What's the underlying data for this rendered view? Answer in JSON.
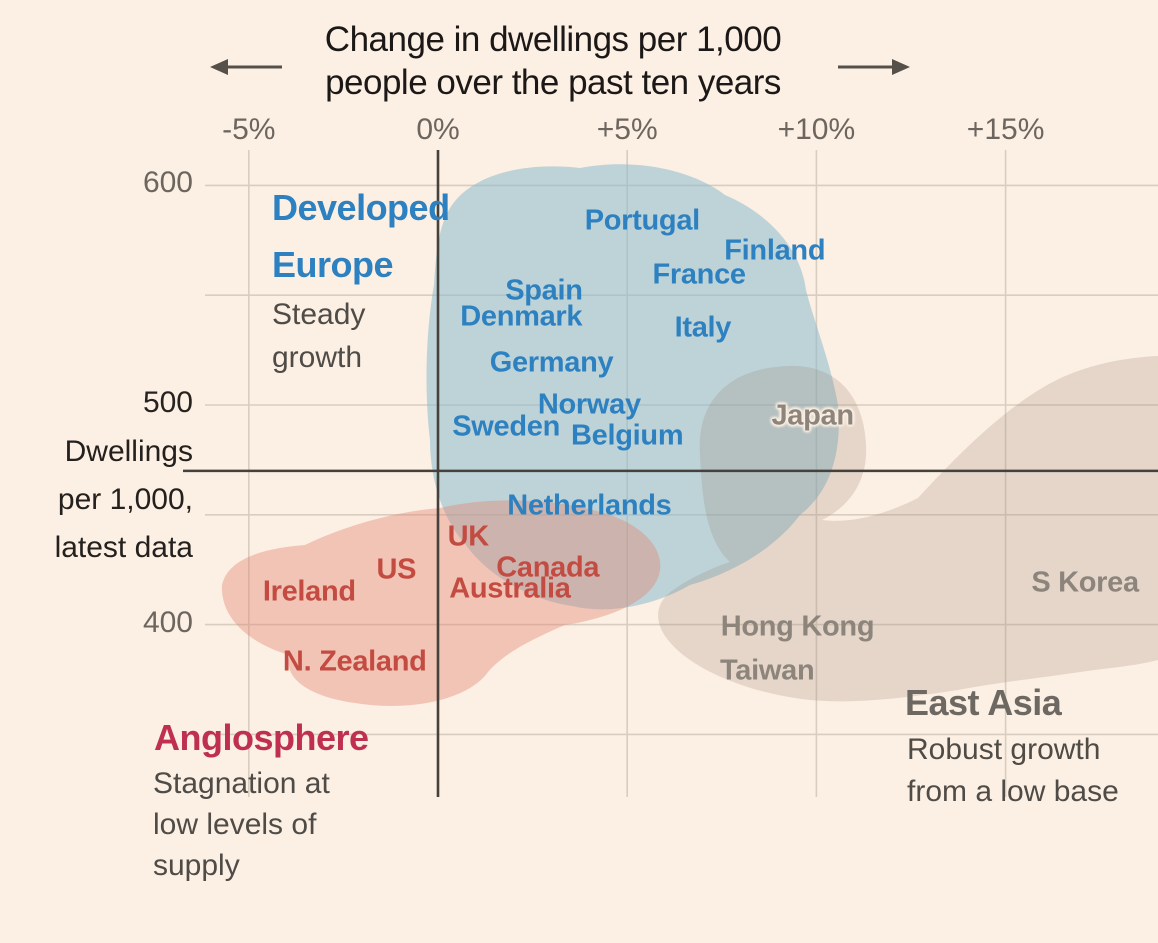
{
  "chart_data": {
    "type": "scatter",
    "title_line1": "Change in dwellings per 1,000",
    "title_line2": "people over the past ten years",
    "xlabel": "Change in dwellings per 1,000 people over the past ten years",
    "ylabel_lines": [
      "Dwellings",
      "per 1,000,",
      "latest data"
    ],
    "x_ticks": [
      {
        "label": "-5%",
        "value": -5
      },
      {
        "label": "0%",
        "value": 0
      },
      {
        "label": "+5%",
        "value": 5
      },
      {
        "label": "+10%",
        "value": 10
      },
      {
        "label": "+15%",
        "value": 15
      }
    ],
    "y_ticks": [
      {
        "label": "600",
        "value": 600,
        "emphasized": false
      },
      {
        "label": "500",
        "value": 500,
        "emphasized": true
      },
      {
        "label": "400",
        "value": 400,
        "emphasized": false
      }
    ],
    "y_gridline_values": [
      600,
      550,
      500,
      450,
      400,
      350
    ],
    "xlim": [
      -6.2,
      19
    ],
    "ylim": [
      335,
      615
    ],
    "grid": true,
    "reference_line_value": 470,
    "zero_line_value": 0,
    "background_color": "#fcefe3",
    "gridline_color": "#d9cdc0",
    "dark_line_color": "#45413d",
    "groups": [
      {
        "id": "developed-europe",
        "header_lines": [
          "Developed",
          "Europe"
        ],
        "subtitle_lines": [
          "Steady",
          "growth"
        ],
        "label_color": "#2d81c0",
        "header_color": "#2d81c0",
        "blob_color": "rgba(133,186,205,0.52)",
        "countries": [
          {
            "label": "Portugal",
            "x_pct": 5.4,
            "dwellings": 584
          },
          {
            "label": "Finland",
            "x_pct": 8.9,
            "dwellings": 570
          },
          {
            "label": "France",
            "x_pct": 6.9,
            "dwellings": 559
          },
          {
            "label": "Spain",
            "x_pct": 2.8,
            "dwellings": 552
          },
          {
            "label": "Denmark",
            "x_pct": 2.2,
            "dwellings": 540
          },
          {
            "label": "Italy",
            "x_pct": 7.0,
            "dwellings": 535
          },
          {
            "label": "Germany",
            "x_pct": 3.0,
            "dwellings": 519
          },
          {
            "label": "Norway",
            "x_pct": 4.0,
            "dwellings": 500
          },
          {
            "label": "Sweden",
            "x_pct": 1.8,
            "dwellings": 490
          },
          {
            "label": "Belgium",
            "x_pct": 5.0,
            "dwellings": 486
          },
          {
            "label": "Netherlands",
            "x_pct": 4.0,
            "dwellings": 454
          }
        ]
      },
      {
        "id": "anglosphere",
        "header_lines": [
          "Anglosphere"
        ],
        "subtitle_lines": [
          "Stagnation at",
          "low levels of",
          "supply"
        ],
        "label_color": "#c34b42",
        "header_color": "#bf2f50",
        "blob_color": "rgba(226,132,112,0.40)",
        "countries": [
          {
            "label": "UK",
            "x_pct": 0.8,
            "dwellings": 440
          },
          {
            "label": "Canada",
            "x_pct": 2.9,
            "dwellings": 426
          },
          {
            "label": "Australia",
            "x_pct": 1.9,
            "dwellings": 416
          },
          {
            "label": "US",
            "x_pct": -1.1,
            "dwellings": 425
          },
          {
            "label": "Ireland",
            "x_pct": -3.4,
            "dwellings": 415
          },
          {
            "label": "N. Zealand",
            "x_pct": -2.2,
            "dwellings": 383
          }
        ]
      },
      {
        "id": "east-asia",
        "header_lines": [
          "East Asia"
        ],
        "subtitle_lines": [
          "Robust growth",
          "from a low base"
        ],
        "label_color": "#8d857c",
        "header_color": "#6e6862",
        "blob_color": "rgba(152,128,108,0.22)",
        "countries": [
          {
            "label": "Japan",
            "x_pct": 9.9,
            "dwellings": 495,
            "halo": true
          },
          {
            "label": "Hong Kong",
            "x_pct": 9.5,
            "dwellings": 399
          },
          {
            "label": "Taiwan",
            "x_pct": 8.7,
            "dwellings": 379
          },
          {
            "label": "S Korea",
            "x_pct": 17.1,
            "dwellings": 419
          }
        ]
      }
    ]
  }
}
